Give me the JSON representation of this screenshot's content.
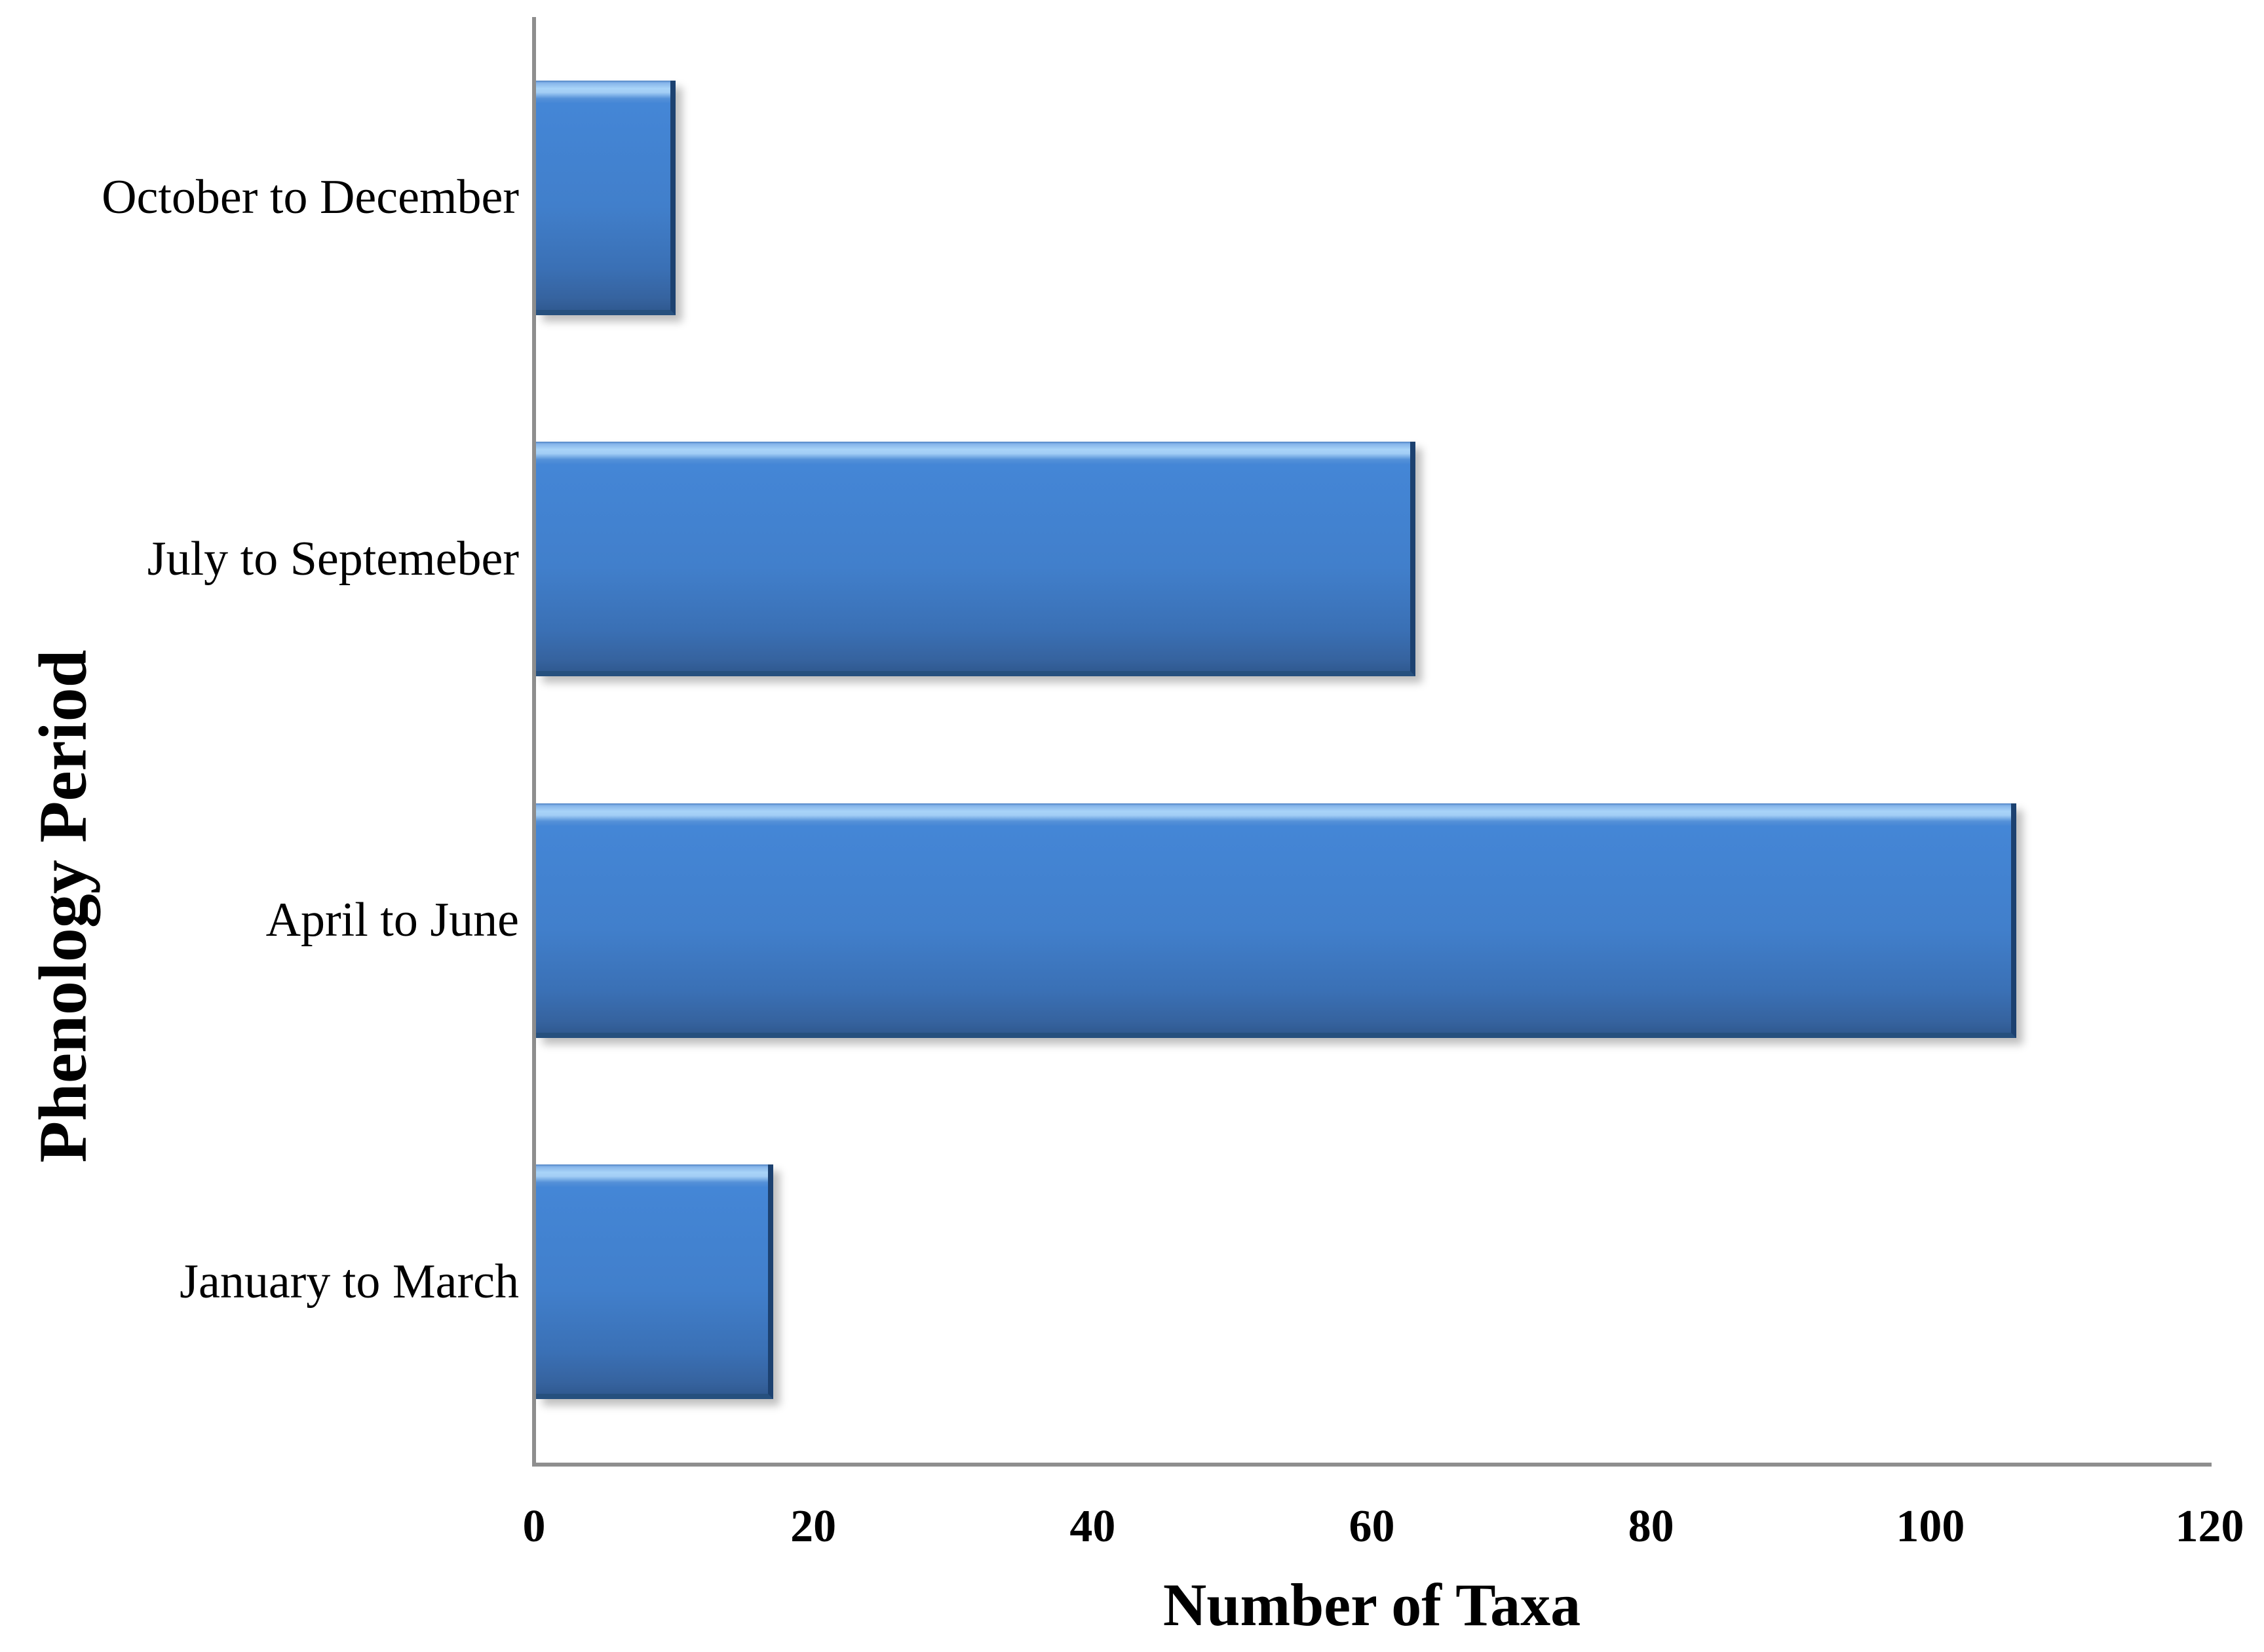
{
  "chart_data": {
    "type": "bar",
    "orientation": "horizontal",
    "title": "",
    "xlabel": "Number of Taxa",
    "ylabel": "Phenology Period",
    "categories": [
      "October to December",
      "July to Septemeber",
      "April to June",
      "January to March"
    ],
    "values": [
      10,
      63,
      106,
      17
    ],
    "xlim": [
      0,
      120
    ],
    "xticks": [
      0,
      20,
      40,
      60,
      80,
      100,
      120
    ],
    "grid": false,
    "legend": false,
    "colors": {
      "bar_fill": "#4384d3",
      "bar_highlight": "#a9d4f8",
      "bar_fill_bottom": "#36639f",
      "bar_edge": "#1c4170",
      "axis_line": "#8e8e8e",
      "text": "#000000",
      "background": "#ffffff"
    }
  }
}
